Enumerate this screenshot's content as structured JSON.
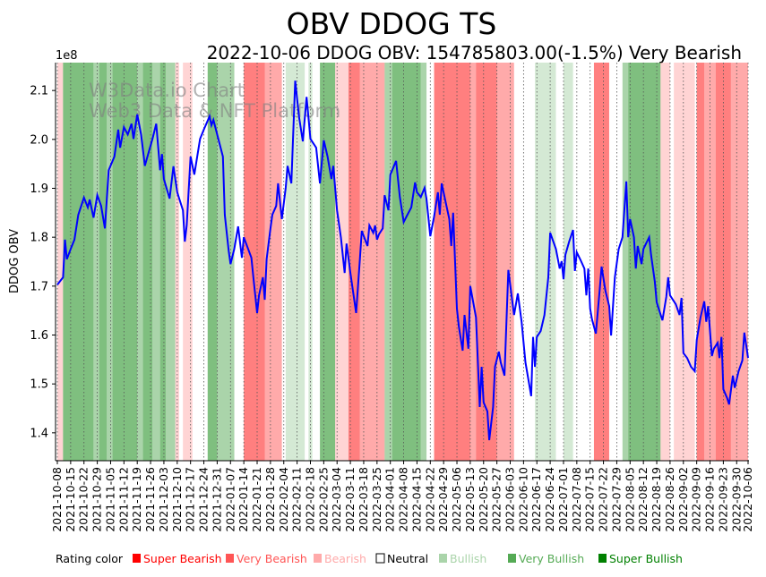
{
  "chart_data": {
    "type": "line",
    "title": "OBV DDOG TS",
    "subtitle": "2022-10-06 DDOG OBV: 154785803.00(-1.5%) Very Bearish",
    "ylabel": "DDOG OBV",
    "y_multiplier_label": "1e8",
    "ylim": [
      1.343,
      2.157
    ],
    "y_ticks": [
      1.4,
      1.5,
      1.6,
      1.7,
      1.8,
      1.9,
      2.0,
      2.1
    ],
    "x_start_date": "2021-10-08",
    "x_range_days": [
      0,
      363
    ],
    "x_tick_days": [
      0,
      7,
      14,
      21,
      28,
      35,
      42,
      49,
      56,
      63,
      70,
      77,
      84,
      91,
      98,
      105,
      112,
      119,
      126,
      133,
      140,
      147,
      154,
      161,
      168,
      175,
      182,
      189,
      196,
      203,
      210,
      217,
      224,
      231,
      238,
      245,
      252,
      259,
      266,
      273,
      280,
      287,
      294,
      301,
      308,
      315,
      322,
      329,
      336,
      343,
      350,
      357,
      363
    ],
    "x_tick_labels": [
      "2021-10-08",
      "2021-10-15",
      "2021-10-22",
      "2021-10-29",
      "2021-11-05",
      "2021-11-12",
      "2021-11-19",
      "2021-11-26",
      "2021-12-03",
      "2021-12-10",
      "2021-12-17",
      "2021-12-24",
      "2021-12-31",
      "2022-01-07",
      "2022-01-14",
      "2022-01-21",
      "2022-01-28",
      "2022-02-04",
      "2022-02-11",
      "2022-02-18",
      "2022-02-25",
      "2022-03-04",
      "2022-03-11",
      "2022-03-18",
      "2022-03-25",
      "2022-04-01",
      "2022-04-08",
      "2022-04-15",
      "2022-04-22",
      "2022-04-29",
      "2022-05-06",
      "2022-05-13",
      "2022-05-20",
      "2022-05-27",
      "2022-06-03",
      "2022-06-10",
      "2022-06-17",
      "2022-06-24",
      "2022-07-01",
      "2022-07-08",
      "2022-07-15",
      "2022-07-22",
      "2022-07-29",
      "2022-08-05",
      "2022-08-12",
      "2022-08-19",
      "2022-08-26",
      "2022-09-02",
      "2022-09-09",
      "2022-09-16",
      "2022-09-23",
      "2022-09-30",
      "2022-10-06"
    ],
    "series": [
      {
        "name": "OBV",
        "color": "#0000ff",
        "days": [
          0,
          3,
          4,
          5,
          7,
          9,
          11,
          14,
          16,
          17,
          19,
          21,
          23,
          25,
          27,
          30,
          32,
          33,
          35,
          37,
          39,
          40,
          42,
          44,
          46,
          48,
          50,
          52,
          54,
          55,
          56,
          59,
          61,
          63,
          66,
          67,
          68,
          70,
          72,
          75,
          77,
          80,
          81,
          82,
          87,
          88,
          90,
          91,
          93,
          95,
          97,
          98,
          102,
          103,
          105,
          106,
          108,
          109,
          110,
          112,
          113,
          115,
          116,
          118,
          120,
          121,
          123,
          125,
          127,
          129,
          131,
          133,
          136,
          138,
          140,
          142,
          144,
          145,
          147,
          149,
          151,
          152,
          154,
          157,
          159,
          160,
          163,
          164,
          166,
          167,
          168,
          169,
          171,
          172,
          174,
          175,
          178,
          180,
          182,
          184,
          186,
          188,
          189,
          191,
          193,
          194,
          196,
          198,
          200,
          201,
          202,
          204,
          206,
          207,
          208,
          210,
          211,
          213,
          214,
          216,
          217,
          220,
          222,
          223,
          224,
          226,
          227,
          229,
          230,
          232,
          233,
          235,
          237,
          239,
          240,
          242,
          244,
          246,
          248,
          249,
          250,
          251,
          252,
          254,
          256,
          258,
          259,
          262,
          264,
          265,
          266,
          267,
          269,
          271,
          272,
          273,
          275,
          277,
          278,
          279,
          280,
          281,
          283,
          285,
          286,
          288,
          290,
          291,
          293,
          295,
          297,
          299,
          300,
          301,
          303,
          304,
          305,
          307,
          308,
          311,
          312,
          314,
          315,
          318,
          320,
          321,
          322,
          325,
          327,
          328,
          329,
          331,
          333,
          335,
          336,
          338,
          340,
          341,
          342,
          344,
          345,
          347,
          348,
          349,
          350,
          352,
          353,
          355,
          356,
          358,
          360,
          361,
          363
        ],
        "values": [
          1.703,
          1.718,
          1.795,
          1.755,
          1.776,
          1.795,
          1.846,
          1.881,
          1.861,
          1.877,
          1.84,
          1.886,
          1.864,
          1.818,
          1.937,
          1.965,
          2.02,
          1.983,
          2.025,
          2.01,
          2.032,
          2.001,
          2.051,
          2.01,
          1.946,
          1.974,
          2.001,
          2.032,
          1.937,
          1.97,
          1.919,
          1.879,
          1.945,
          1.892,
          1.855,
          1.791,
          1.824,
          1.965,
          1.928,
          2.001,
          2.02,
          2.047,
          2.029,
          2.04,
          1.965,
          1.846,
          1.773,
          1.745,
          1.776,
          1.822,
          1.758,
          1.8,
          1.758,
          1.718,
          1.645,
          1.681,
          1.718,
          1.672,
          1.755,
          1.818,
          1.846,
          1.864,
          1.91,
          1.837,
          1.901,
          1.946,
          1.91,
          2.12,
          2.047,
          1.996,
          2.087,
          2.001,
          1.983,
          1.91,
          1.998,
          1.965,
          1.919,
          1.946,
          1.855,
          1.8,
          1.727,
          1.787,
          1.727,
          1.645,
          1.755,
          1.813,
          1.782,
          1.824,
          1.809,
          1.824,
          1.795,
          1.806,
          1.818,
          1.886,
          1.855,
          1.928,
          1.956,
          1.882,
          1.831,
          1.846,
          1.861,
          1.912,
          1.892,
          1.882,
          1.901,
          1.879,
          1.802,
          1.842,
          1.892,
          1.846,
          1.91,
          1.873,
          1.837,
          1.782,
          1.85,
          1.654,
          1.617,
          1.568,
          1.641,
          1.572,
          1.7,
          1.636,
          1.453,
          1.535,
          1.462,
          1.444,
          1.385,
          1.453,
          1.535,
          1.566,
          1.544,
          1.517,
          1.733,
          1.672,
          1.641,
          1.685,
          1.627,
          1.544,
          1.499,
          1.475,
          1.596,
          1.535,
          1.596,
          1.608,
          1.641,
          1.718,
          1.809,
          1.776,
          1.736,
          1.751,
          1.714,
          1.764,
          1.791,
          1.815,
          1.731,
          1.769,
          1.753,
          1.736,
          1.681,
          1.736,
          1.654,
          1.632,
          1.603,
          1.691,
          1.74,
          1.691,
          1.659,
          1.599,
          1.718,
          1.776,
          1.8,
          1.914,
          1.8,
          1.837,
          1.8,
          1.736,
          1.782,
          1.745,
          1.776,
          1.8,
          1.764,
          1.709,
          1.667,
          1.63,
          1.678,
          1.718,
          1.681,
          1.663,
          1.641,
          1.676,
          1.563,
          1.553,
          1.535,
          1.526,
          1.59,
          1.636,
          1.669,
          1.627,
          1.659,
          1.557,
          1.572,
          1.584,
          1.553,
          1.596,
          1.489,
          1.471,
          1.458,
          1.517,
          1.492,
          1.526,
          1.548,
          1.605,
          1.553
        ]
      }
    ],
    "rating_bands": [
      {
        "from": 0,
        "to": 3,
        "rating": "Bearish"
      },
      {
        "from": 3,
        "to": 19,
        "rating": "Super Bullish"
      },
      {
        "from": 19,
        "to": 22,
        "rating": "Very Bullish"
      },
      {
        "from": 22,
        "to": 26,
        "rating": "Super Bullish"
      },
      {
        "from": 26,
        "to": 29,
        "rating": "Very Bullish"
      },
      {
        "from": 29,
        "to": 42,
        "rating": "Super Bullish"
      },
      {
        "from": 42,
        "to": 45,
        "rating": "Very Bullish"
      },
      {
        "from": 45,
        "to": 50,
        "rating": "Super Bullish"
      },
      {
        "from": 50,
        "to": 54,
        "rating": "Very Bullish"
      },
      {
        "from": 54,
        "to": 57,
        "rating": "Super Bullish"
      },
      {
        "from": 57,
        "to": 62,
        "rating": "Very Bullish"
      },
      {
        "from": 62,
        "to": 64,
        "rating": "Bearish"
      },
      {
        "from": 66,
        "to": 71,
        "rating": "Bearish"
      },
      {
        "from": 79,
        "to": 84,
        "rating": "Super Bullish"
      },
      {
        "from": 84,
        "to": 93,
        "rating": "Very Bullish"
      },
      {
        "from": 98,
        "to": 109,
        "rating": "Super Bearish"
      },
      {
        "from": 109,
        "to": 118,
        "rating": "Very Bearish"
      },
      {
        "from": 120,
        "to": 130,
        "rating": "Bullish"
      },
      {
        "from": 132,
        "to": 134,
        "rating": "Bullish"
      },
      {
        "from": 138,
        "to": 146,
        "rating": "Super Bullish"
      },
      {
        "from": 146,
        "to": 153,
        "rating": "Bearish"
      },
      {
        "from": 153,
        "to": 159,
        "rating": "Super Bearish"
      },
      {
        "from": 159,
        "to": 172,
        "rating": "Very Bearish"
      },
      {
        "from": 172,
        "to": 176,
        "rating": "Very Bullish"
      },
      {
        "from": 176,
        "to": 191,
        "rating": "Super Bullish"
      },
      {
        "from": 191,
        "to": 194,
        "rating": "Very Bullish"
      },
      {
        "from": 198,
        "to": 217,
        "rating": "Super Bearish"
      },
      {
        "from": 217,
        "to": 220,
        "rating": "Very Bearish"
      },
      {
        "from": 220,
        "to": 231,
        "rating": "Super Bearish"
      },
      {
        "from": 231,
        "to": 240,
        "rating": "Very Bearish"
      },
      {
        "from": 251,
        "to": 262,
        "rating": "Bullish"
      },
      {
        "from": 266,
        "to": 271,
        "rating": "Bullish"
      },
      {
        "from": 282,
        "to": 290,
        "rating": "Super Bearish"
      },
      {
        "from": 297,
        "to": 300,
        "rating": "Very Bullish"
      },
      {
        "from": 300,
        "to": 317,
        "rating": "Super Bullish"
      },
      {
        "from": 317,
        "to": 322,
        "rating": "Bearish"
      },
      {
        "from": 324,
        "to": 335,
        "rating": "Bearish"
      },
      {
        "from": 336,
        "to": 340,
        "rating": "Super Bearish"
      },
      {
        "from": 340,
        "to": 346,
        "rating": "Very Bearish"
      },
      {
        "from": 346,
        "to": 354,
        "rating": "Super Bearish"
      },
      {
        "from": 354,
        "to": 363,
        "rating": "Very Bearish"
      }
    ],
    "watermark": [
      "W3Data.io Chart",
      "Web3 Data & NFT Platform"
    ],
    "legend": {
      "title": "Rating color",
      "placement": "bottom",
      "items": [
        {
          "label": "Super Bearish",
          "color": "#ff0000"
        },
        {
          "label": "Very Bearish",
          "color": "#ff5555"
        },
        {
          "label": "Bearish",
          "color": "#ffaaaa"
        },
        {
          "label": "Neutral",
          "color": "#ffffff"
        },
        {
          "label": "Bullish",
          "color": "#aad4aa"
        },
        {
          "label": "Very Bullish",
          "color": "#55aa55"
        },
        {
          "label": "Super Bullish",
          "color": "#008000"
        }
      ]
    }
  }
}
